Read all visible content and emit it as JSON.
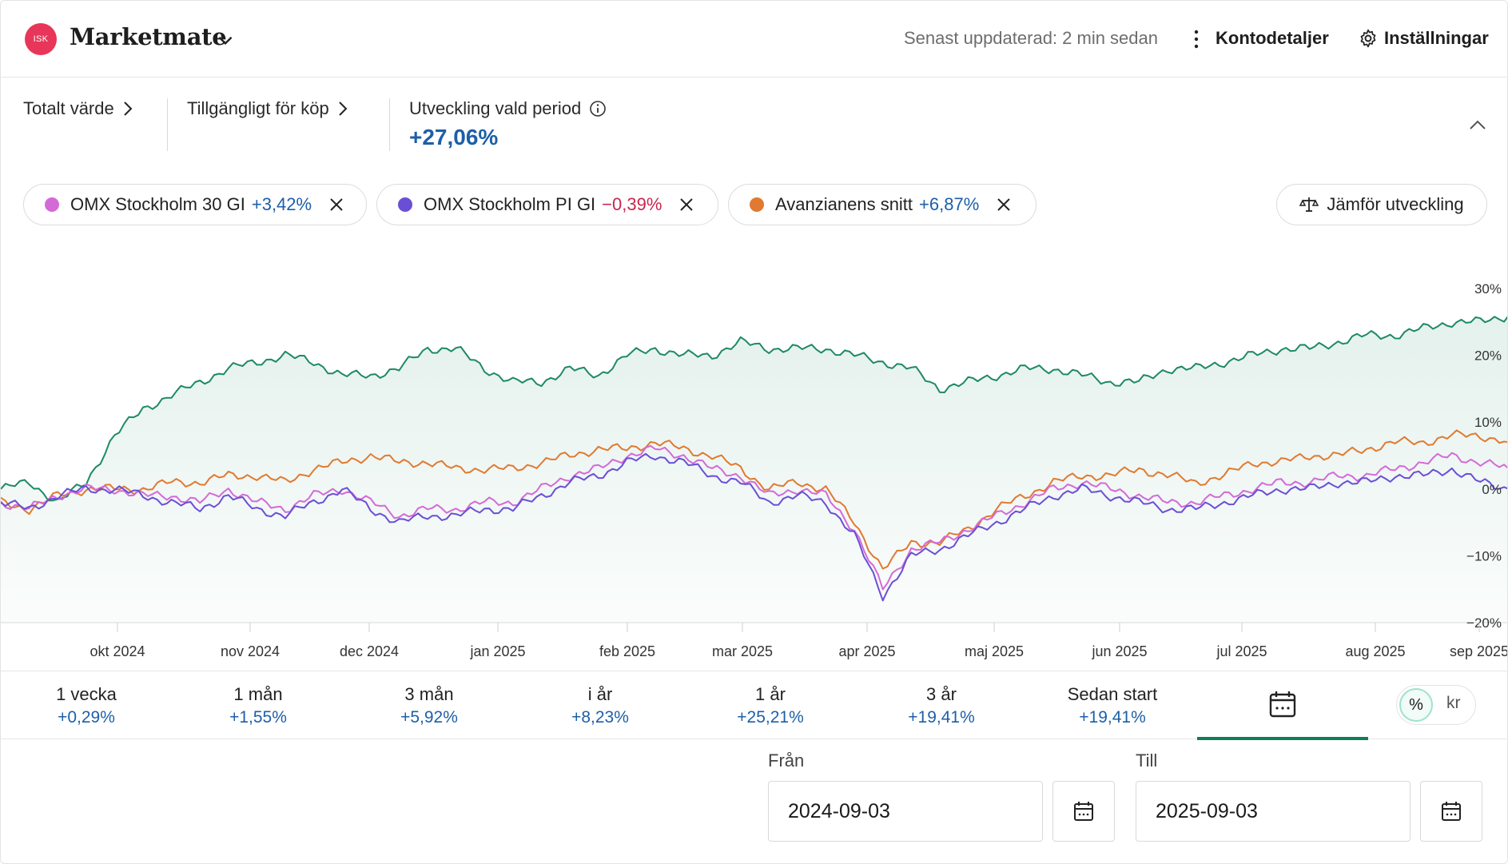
{
  "header": {
    "badge": "ISK",
    "title": "Marketmate",
    "updated": "Senast uppdaterad: 2 min sedan",
    "account_details": "Kontodetaljer",
    "settings": "Inställningar"
  },
  "summary": {
    "total_value": "Totalt värde",
    "available": "Tillgängligt för köp",
    "period_label": "Utveckling vald period",
    "period_value": "+27,06%"
  },
  "chips": [
    {
      "name": "OMX Stockholm 30 GI",
      "value": "+3,42%",
      "color": "#d46ad8"
    },
    {
      "name": "OMX Stockholm PI GI",
      "value": "−0,39%",
      "color": "#6a4fd6"
    },
    {
      "name": "Avanzianens snitt",
      "value": "+6,87%",
      "color": "#e07a30"
    }
  ],
  "compare_button": "Jämför utveckling",
  "chart_data": {
    "type": "line",
    "ylim": [
      -20,
      30
    ],
    "y_ticks": [
      "30%",
      "20%",
      "10%",
      "0%",
      "−10%",
      "−20%"
    ],
    "x_ticks": [
      "okt 2024",
      "nov 2024",
      "dec 2024",
      "jan 2025",
      "feb 2025",
      "mar 2025",
      "apr 2025",
      "maj 2025",
      "jun 2025",
      "jul 2025",
      "aug 2025",
      "sep 2025"
    ],
    "series": [
      {
        "color": "#1d8a63",
        "fill": true,
        "values": [
          0,
          1,
          -2,
          1,
          8,
          12,
          14,
          16,
          18,
          19,
          20,
          19,
          17,
          17,
          18,
          21,
          21,
          18,
          16,
          16,
          18,
          17,
          20,
          21,
          20,
          20,
          22,
          21,
          21,
          21,
          20,
          19,
          18,
          15,
          16,
          17,
          18,
          18,
          17,
          16,
          16,
          18,
          18,
          19,
          20,
          21,
          21,
          22,
          23,
          23,
          24,
          25,
          25,
          26
        ]
      },
      {
        "color": "#e07a30",
        "values": [
          -2,
          -3,
          -1,
          0,
          0,
          0,
          1,
          1,
          2,
          2,
          1,
          3,
          4,
          5,
          4,
          4,
          3,
          3,
          3,
          4,
          5,
          6,
          6,
          7,
          6,
          5,
          3,
          0,
          1,
          0,
          -5,
          -12,
          -8,
          -8,
          -6,
          -3,
          -1,
          1,
          2,
          2,
          3,
          2,
          1,
          2,
          4,
          4,
          5,
          5,
          6,
          7,
          7,
          8,
          8,
          7
        ]
      },
      {
        "color": "#d46ad8",
        "values": [
          -2,
          -3,
          -1,
          0,
          0,
          -1,
          -1,
          -2,
          0,
          -2,
          -3,
          -1,
          0,
          -2,
          -4,
          -3,
          -3,
          -2,
          -2,
          0,
          2,
          3,
          5,
          6,
          5,
          3,
          2,
          -1,
          0,
          -1,
          -6,
          -15,
          -9,
          -8,
          -6,
          -4,
          -2,
          0,
          1,
          0,
          -1,
          -2,
          -2,
          -1,
          0,
          1,
          1,
          2,
          2,
          3,
          4,
          5,
          4,
          3
        ]
      },
      {
        "color": "#6a4fd6",
        "values": [
          -2,
          -3,
          -1,
          0,
          0,
          -1,
          -2,
          -3,
          -1,
          -3,
          -4,
          -2,
          0,
          -3,
          -5,
          -4,
          -4,
          -3,
          -3,
          -1,
          1,
          2,
          4,
          5,
          4,
          2,
          1,
          -2,
          -1,
          -2,
          -7,
          -16,
          -10,
          -9,
          -7,
          -5,
          -3,
          -1,
          0,
          -1,
          -2,
          -3,
          -3,
          -2,
          -1,
          0,
          0,
          1,
          1,
          2,
          2,
          3,
          1,
          0
        ]
      }
    ]
  },
  "periods": [
    {
      "label": "1 vecka",
      "value": "+0,29%"
    },
    {
      "label": "1 mån",
      "value": "+1,55%"
    },
    {
      "label": "3 mån",
      "value": "+5,92%"
    },
    {
      "label": "i år",
      "value": "+8,23%"
    },
    {
      "label": "1 år",
      "value": "+25,21%"
    },
    {
      "label": "3 år",
      "value": "+19,41%"
    },
    {
      "label": "Sedan start",
      "value": "+19,41%"
    }
  ],
  "toggle": {
    "pct": "%",
    "kr": "kr"
  },
  "dates": {
    "from_label": "Från",
    "from_value": "2024-09-03",
    "to_label": "Till",
    "to_value": "2025-09-03"
  }
}
